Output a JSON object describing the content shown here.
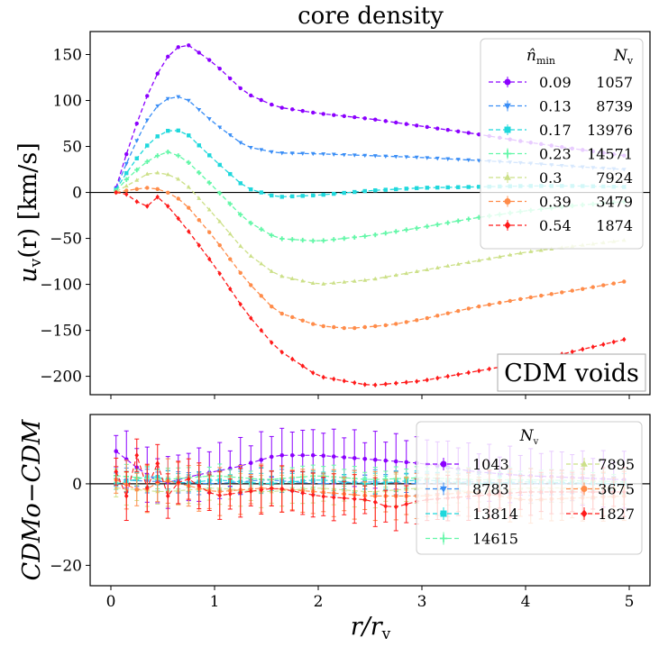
{
  "chart_data": [
    {
      "type": "line",
      "title": "core density",
      "xlabel": "",
      "ylabel": "u_v(r) [km/s]",
      "ylabel_parts": {
        "sym": "u",
        "sub": "v",
        "arg": "(r) [km/s]"
      },
      "xlim": [
        -0.2,
        5.2
      ],
      "ylim": [
        -220,
        175
      ],
      "xticks": [
        "0",
        "1",
        "2",
        "3",
        "4",
        "5"
      ],
      "yticks": [
        "150",
        "100",
        "50",
        "0",
        "−50",
        "−100",
        "−150",
        "−200"
      ],
      "ytick_values": [
        150,
        100,
        50,
        0,
        -50,
        -100,
        -150,
        -200
      ],
      "annotation": "CDM voids",
      "legend": {
        "position": "top-right",
        "header_left": "n̂min",
        "header_left_parts": {
          "sym": "n̂",
          "sub": "min"
        },
        "header_right": "Nv",
        "header_right_parts": {
          "sym": "N",
          "sub": "v"
        },
        "entries": [
          {
            "label": "0.09",
            "count": "1057"
          },
          {
            "label": "0.13",
            "count": "8739"
          },
          {
            "label": "0.17",
            "count": "13976"
          },
          {
            "label": "0.23",
            "count": "14571"
          },
          {
            "label": "0.3",
            "count": "7924"
          },
          {
            "label": "0.39",
            "count": "3479"
          },
          {
            "label": "0.54",
            "count": "1874"
          }
        ]
      },
      "series": [
        {
          "name": "0.09",
          "color": "#8b00ff",
          "marker": "circle",
          "knots": [
            [
              0.05,
              5
            ],
            [
              0.2,
              60
            ],
            [
              0.4,
              120
            ],
            [
              0.6,
              157
            ],
            [
              0.75,
              160
            ],
            [
              1.0,
              140
            ],
            [
              1.3,
              108
            ],
            [
              1.6,
              93
            ],
            [
              2.0,
              86
            ],
            [
              2.5,
              80
            ],
            [
              3.0,
              72
            ],
            [
              3.5,
              64
            ],
            [
              4.0,
              55
            ],
            [
              4.5,
              47
            ],
            [
              4.95,
              40
            ]
          ]
        },
        {
          "name": "0.13",
          "color": "#3a8ef6",
          "marker": "triangle-down",
          "knots": [
            [
              0.05,
              4
            ],
            [
              0.2,
              45
            ],
            [
              0.4,
              90
            ],
            [
              0.6,
              106
            ],
            [
              0.75,
              100
            ],
            [
              1.0,
              75
            ],
            [
              1.3,
              50
            ],
            [
              1.6,
              43
            ],
            [
              2.0,
              42
            ],
            [
              2.5,
              40
            ],
            [
              3.0,
              38
            ],
            [
              3.5,
              35
            ],
            [
              4.0,
              32
            ],
            [
              4.5,
              28
            ],
            [
              4.95,
              25
            ]
          ]
        },
        {
          "name": "0.17",
          "color": "#1fd8dc",
          "marker": "square",
          "knots": [
            [
              0.05,
              3
            ],
            [
              0.2,
              30
            ],
            [
              0.4,
              58
            ],
            [
              0.6,
              70
            ],
            [
              0.75,
              62
            ],
            [
              1.0,
              35
            ],
            [
              1.3,
              5
            ],
            [
              1.6,
              -5
            ],
            [
              2.0,
              -3
            ],
            [
              2.5,
              2
            ],
            [
              3.0,
              5
            ],
            [
              3.5,
              6
            ],
            [
              4.0,
              7
            ],
            [
              4.5,
              7
            ],
            [
              4.95,
              6
            ]
          ]
        },
        {
          "name": "0.23",
          "color": "#63f7a8",
          "marker": "plus",
          "knots": [
            [
              0.05,
              2
            ],
            [
              0.2,
              20
            ],
            [
              0.4,
              38
            ],
            [
              0.55,
              44
            ],
            [
              0.7,
              38
            ],
            [
              1.0,
              5
            ],
            [
              1.3,
              -30
            ],
            [
              1.6,
              -50
            ],
            [
              2.0,
              -53
            ],
            [
              2.5,
              -47
            ],
            [
              3.0,
              -38
            ],
            [
              3.5,
              -28
            ],
            [
              4.0,
              -20
            ],
            [
              4.5,
              -14
            ],
            [
              4.95,
              -10
            ]
          ]
        },
        {
          "name": "0.3",
          "color": "#cce088",
          "marker": "triangle-up",
          "knots": [
            [
              0.05,
              1
            ],
            [
              0.2,
              10
            ],
            [
              0.35,
              20
            ],
            [
              0.5,
              22
            ],
            [
              0.7,
              12
            ],
            [
              1.0,
              -25
            ],
            [
              1.3,
              -65
            ],
            [
              1.6,
              -90
            ],
            [
              2.0,
              -100
            ],
            [
              2.5,
              -95
            ],
            [
              3.0,
              -85
            ],
            [
              3.5,
              -75
            ],
            [
              4.0,
              -65
            ],
            [
              4.5,
              -58
            ],
            [
              4.95,
              -52
            ]
          ]
        },
        {
          "name": "0.39",
          "color": "#ff8c4a",
          "marker": "circle",
          "knots": [
            [
              0.05,
              0
            ],
            [
              0.2,
              3
            ],
            [
              0.35,
              5
            ],
            [
              0.5,
              3
            ],
            [
              0.7,
              -10
            ],
            [
              1.0,
              -50
            ],
            [
              1.3,
              -95
            ],
            [
              1.6,
              -130
            ],
            [
              2.0,
              -145
            ],
            [
              2.3,
              -148
            ],
            [
              2.7,
              -144
            ],
            [
              3.0,
              -138
            ],
            [
              3.5,
              -125
            ],
            [
              4.0,
              -115
            ],
            [
              4.5,
              -106
            ],
            [
              4.95,
              -97
            ]
          ]
        },
        {
          "name": "0.54",
          "color": "#ff1a1a",
          "marker": "diamond",
          "knots": [
            [
              0.05,
              0
            ],
            [
              0.15,
              -2
            ],
            [
              0.25,
              -10
            ],
            [
              0.35,
              -15
            ],
            [
              0.45,
              -5
            ],
            [
              0.55,
              -15
            ],
            [
              0.7,
              -35
            ],
            [
              1.0,
              -80
            ],
            [
              1.3,
              -130
            ],
            [
              1.6,
              -170
            ],
            [
              2.0,
              -200
            ],
            [
              2.5,
              -210
            ],
            [
              3.0,
              -205
            ],
            [
              3.5,
              -195
            ],
            [
              4.0,
              -185
            ],
            [
              4.5,
              -172
            ],
            [
              4.95,
              -160
            ]
          ]
        }
      ]
    },
    {
      "type": "line",
      "title": "",
      "xlabel": "r/r_v",
      "xlabel_parts": {
        "sym": "r/r",
        "sub": "v"
      },
      "ylabel": "CDMo−CDM",
      "xlim": [
        -0.2,
        5.2
      ],
      "ylim": [
        -25,
        17
      ],
      "xticks": [
        "0",
        "1",
        "2",
        "3",
        "4",
        "5"
      ],
      "xtick_values": [
        0,
        1,
        2,
        3,
        4,
        5
      ],
      "yticks": [
        "0",
        "−20"
      ],
      "ytick_values": [
        0,
        -20
      ],
      "legend": {
        "position": "top-right",
        "header": "Nv",
        "header_parts": {
          "sym": "N",
          "sub": "v"
        },
        "entries": [
          "1043",
          "8783",
          "13814",
          "14615",
          "7895",
          "3675",
          "1827"
        ]
      },
      "series": [
        {
          "name": "1043",
          "color": "#8b00ff",
          "marker": "circle",
          "err": 7,
          "knots": [
            [
              0.05,
              8
            ],
            [
              0.3,
              3
            ],
            [
              0.5,
              0
            ],
            [
              0.8,
              2
            ],
            [
              1.2,
              4
            ],
            [
              1.6,
              7
            ],
            [
              2.0,
              7
            ],
            [
              2.5,
              6
            ],
            [
              3.0,
              5
            ],
            [
              3.5,
              3
            ],
            [
              4.0,
              2
            ],
            [
              4.95,
              1
            ]
          ]
        },
        {
          "name": "8783",
          "color": "#3a8ef6",
          "marker": "triangle-down",
          "err": 3,
          "knots": [
            [
              0.05,
              1
            ],
            [
              0.5,
              0.5
            ],
            [
              1.0,
              0
            ],
            [
              1.5,
              1
            ],
            [
              2.0,
              0
            ],
            [
              2.5,
              0.5
            ],
            [
              3.0,
              0
            ],
            [
              3.5,
              0.5
            ],
            [
              4.0,
              0
            ],
            [
              4.95,
              0
            ]
          ]
        },
        {
          "name": "13814",
          "color": "#1fd8dc",
          "marker": "square",
          "err": 2.5,
          "knots": [
            [
              0.05,
              0
            ],
            [
              0.4,
              2
            ],
            [
              0.7,
              0
            ],
            [
              1.0,
              1
            ],
            [
              1.5,
              0
            ],
            [
              2.0,
              1
            ],
            [
              2.5,
              0
            ],
            [
              3.0,
              1
            ],
            [
              3.5,
              0
            ],
            [
              4.0,
              0.5
            ],
            [
              4.95,
              0
            ]
          ]
        },
        {
          "name": "14615",
          "color": "#63f7a8",
          "marker": "plus",
          "err": 3,
          "knots": [
            [
              0.05,
              2
            ],
            [
              0.5,
              1
            ],
            [
              1.0,
              2
            ],
            [
              1.5,
              1
            ],
            [
              2.0,
              2
            ],
            [
              2.5,
              1
            ],
            [
              3.0,
              1.5
            ],
            [
              3.5,
              1
            ],
            [
              4.0,
              1
            ],
            [
              4.95,
              0.5
            ]
          ]
        },
        {
          "name": "7895",
          "color": "#cce088",
          "marker": "triangle-up",
          "err": 4,
          "knots": [
            [
              0.05,
              -1
            ],
            [
              0.5,
              -2
            ],
            [
              1.0,
              -1
            ],
            [
              1.5,
              -2
            ],
            [
              2.0,
              -1
            ],
            [
              2.5,
              -2
            ],
            [
              3.0,
              -1
            ],
            [
              3.5,
              -2
            ],
            [
              4.0,
              -1
            ],
            [
              4.95,
              -1
            ]
          ]
        },
        {
          "name": "3675",
          "color": "#ff8c4a",
          "marker": "circle",
          "err": 6,
          "knots": [
            [
              0.05,
              1
            ],
            [
              0.3,
              -2
            ],
            [
              0.5,
              1
            ],
            [
              1.0,
              -2
            ],
            [
              1.5,
              -1
            ],
            [
              2.0,
              -2
            ],
            [
              2.5,
              -3
            ],
            [
              3.0,
              -3
            ],
            [
              3.5,
              -2
            ],
            [
              4.0,
              -4
            ],
            [
              4.95,
              -3
            ]
          ]
        },
        {
          "name": "1827",
          "color": "#ff1a1a",
          "marker": "diamond",
          "err": 6,
          "knots": [
            [
              0.05,
              3
            ],
            [
              0.15,
              -3
            ],
            [
              0.25,
              7
            ],
            [
              0.35,
              -1
            ],
            [
              0.45,
              5
            ],
            [
              0.55,
              -3
            ],
            [
              0.7,
              2
            ],
            [
              1.0,
              -3
            ],
            [
              1.3,
              -2
            ],
            [
              1.6,
              -1
            ],
            [
              2.0,
              -3
            ],
            [
              2.5,
              -4
            ],
            [
              2.7,
              -6
            ],
            [
              3.0,
              -4
            ],
            [
              3.5,
              -3
            ],
            [
              4.0,
              -2
            ],
            [
              4.95,
              -2
            ]
          ]
        }
      ]
    }
  ]
}
